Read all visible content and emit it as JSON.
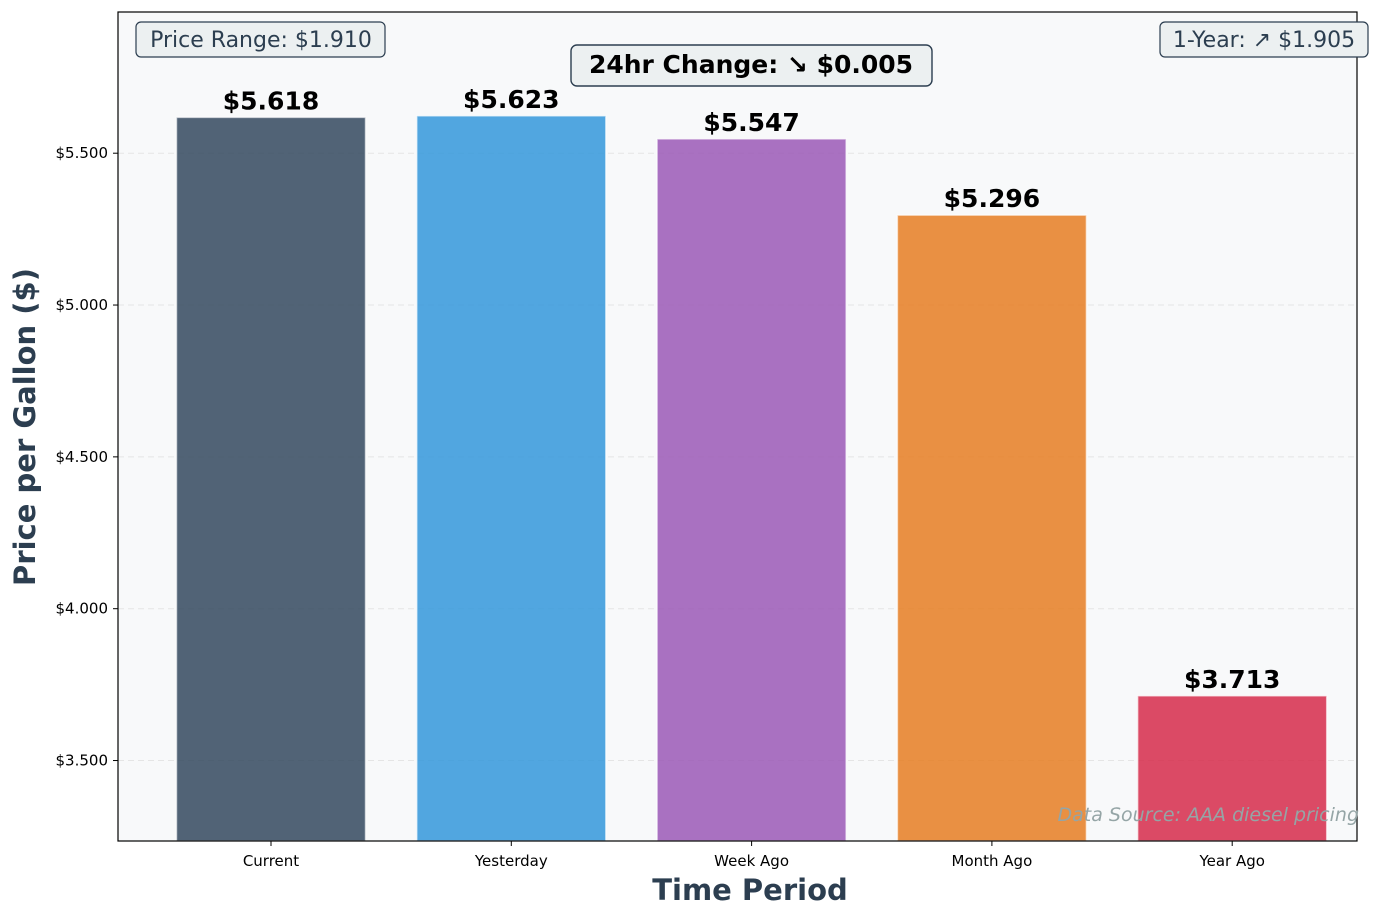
{
  "chart_data": {
    "type": "bar",
    "categories": [
      "Current",
      "Yesterday",
      "Week Ago",
      "Month Ago",
      "Year Ago"
    ],
    "values": [
      5.618,
      5.623,
      5.547,
      5.296,
      3.713
    ],
    "value_labels": [
      "$5.618",
      "$5.623",
      "$5.547",
      "$5.296",
      "$3.713"
    ],
    "colors": [
      "#34495e",
      "#3498db",
      "#9b59b6",
      "#e67e22",
      "#d62c4a"
    ],
    "xlabel": "Time Period",
    "ylabel": "Price per Gallon ($)",
    "ylim": [
      3.235,
      5.965
    ],
    "yticks": [
      3.5,
      4.0,
      4.5,
      5.0,
      5.5
    ],
    "ytick_labels": [
      "$3.500",
      "$4.000",
      "$4.500",
      "$5.000",
      "$5.500"
    ],
    "grid": "y-dashed",
    "annotations": {
      "price_range": "Price Range: $1.910",
      "change_24hr": "24hr Change: ↘ $0.005",
      "one_year": "1-Year: ↗ $1.905",
      "source": "Data Source: AAA diesel pricing"
    },
    "plot_background": "#f8f9fa"
  }
}
